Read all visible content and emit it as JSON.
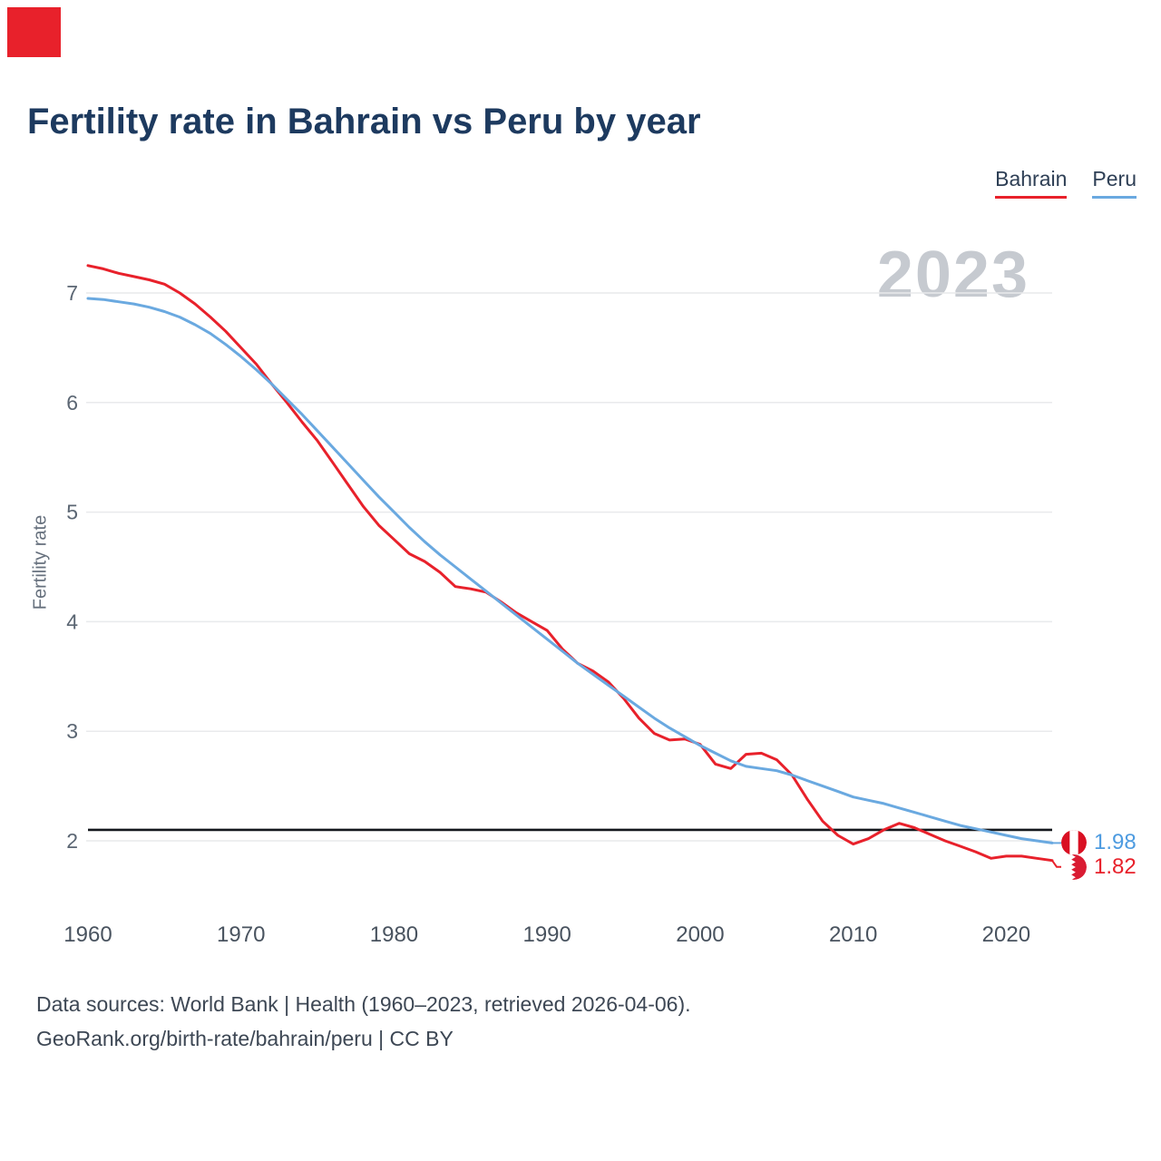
{
  "brand": {
    "color": "#e8212b"
  },
  "header": {
    "title": "Fertility rate in Bahrain vs Peru by year"
  },
  "legend": [
    {
      "label": "Bahrain",
      "color": "#e8212b"
    },
    {
      "label": "Peru",
      "color": "#6aa9e0"
    }
  ],
  "watermark": "2023",
  "end_labels": [
    {
      "series": "Peru",
      "value": "1.98",
      "color": "#4d9be0",
      "flag": "peru-flag-icon"
    },
    {
      "series": "Bahrain",
      "value": "1.82",
      "color": "#e8212b",
      "flag": "bahrain-flag-icon"
    }
  ],
  "footer": {
    "line1": "Data sources: World Bank | Health (1960–2023, retrieved 2026-04-06).",
    "line2": "GeoRank.org/birth-rate/bahrain/peru | CC BY"
  },
  "chart_data": {
    "type": "line",
    "title": "Fertility rate in Bahrain vs Peru by year",
    "xlabel": "",
    "ylabel": "Fertility rate",
    "x": [
      1960,
      1961,
      1962,
      1963,
      1964,
      1965,
      1966,
      1967,
      1968,
      1969,
      1970,
      1971,
      1972,
      1973,
      1974,
      1975,
      1976,
      1977,
      1978,
      1979,
      1980,
      1981,
      1982,
      1983,
      1984,
      1985,
      1986,
      1987,
      1988,
      1989,
      1990,
      1991,
      1992,
      1993,
      1994,
      1995,
      1996,
      1997,
      1998,
      1999,
      2000,
      2001,
      2002,
      2003,
      2004,
      2005,
      2006,
      2007,
      2008,
      2009,
      2010,
      2011,
      2012,
      2013,
      2014,
      2015,
      2016,
      2017,
      2018,
      2019,
      2020,
      2021,
      2022,
      2023
    ],
    "series": [
      {
        "name": "Bahrain",
        "color": "#e8212b",
        "values": [
          7.25,
          7.22,
          7.18,
          7.15,
          7.12,
          7.08,
          7.0,
          6.9,
          6.78,
          6.65,
          6.5,
          6.35,
          6.17,
          6.0,
          5.82,
          5.65,
          5.45,
          5.25,
          5.05,
          4.88,
          4.75,
          4.62,
          4.55,
          4.45,
          4.32,
          4.3,
          4.27,
          4.18,
          4.08,
          4.0,
          3.92,
          3.75,
          3.62,
          3.55,
          3.45,
          3.3,
          3.12,
          2.98,
          2.92,
          2.93,
          2.88,
          2.7,
          2.66,
          2.79,
          2.8,
          2.74,
          2.6,
          2.38,
          2.18,
          2.05,
          1.97,
          2.02,
          2.1,
          2.16,
          2.12,
          2.06,
          2.0,
          1.95,
          1.9,
          1.84,
          1.86,
          1.86,
          1.84,
          1.82
        ]
      },
      {
        "name": "Peru",
        "color": "#6aa9e0",
        "values": [
          6.95,
          6.94,
          6.92,
          6.9,
          6.87,
          6.83,
          6.78,
          6.71,
          6.63,
          6.53,
          6.42,
          6.3,
          6.17,
          6.03,
          5.89,
          5.74,
          5.59,
          5.44,
          5.29,
          5.14,
          5.0,
          4.86,
          4.73,
          4.61,
          4.5,
          4.39,
          4.28,
          4.17,
          4.06,
          3.95,
          3.84,
          3.73,
          3.62,
          3.52,
          3.42,
          3.32,
          3.22,
          3.12,
          3.03,
          2.95,
          2.87,
          2.8,
          2.73,
          2.68,
          2.66,
          2.64,
          2.6,
          2.55,
          2.5,
          2.45,
          2.4,
          2.37,
          2.34,
          2.3,
          2.26,
          2.22,
          2.18,
          2.14,
          2.11,
          2.08,
          2.05,
          2.02,
          2.0,
          1.98
        ]
      }
    ],
    "yticks": [
      2,
      3,
      4,
      5,
      6,
      7
    ],
    "xticks": [
      1960,
      1970,
      1980,
      1990,
      2000,
      2010,
      2020
    ],
    "ylim": [
      1.6,
      7.4
    ],
    "xlim": [
      1960,
      2023
    ],
    "grid": true,
    "reference_line": {
      "value": 2.1,
      "color": "#14181d"
    },
    "legend_position": "top-right"
  }
}
